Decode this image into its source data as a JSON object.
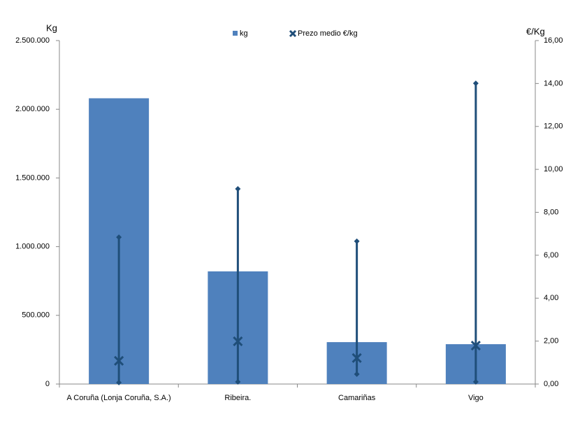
{
  "chart_data": {
    "type": "bar-range",
    "categories": [
      "A Coruña (Lonja Coruña, S.A.)",
      "Ribeira.",
      "Camariñas",
      "Vigo"
    ],
    "ylabel": "Kg",
    "y2label": "€/Kg",
    "series": [
      {
        "name": "kg",
        "color": "#4f81bd",
        "values": [
          2080000,
          820000,
          305000,
          290000
        ]
      },
      {
        "name": "Prezo medio €/kg",
        "color": "#1f4e79",
        "axis": "y2",
        "values": [
          1.08,
          1.99,
          1.21,
          1.79
        ],
        "high": [
          6.84,
          9.09,
          6.65,
          14.01
        ],
        "low": [
          0.07,
          0.1,
          0.46,
          0.1
        ]
      }
    ],
    "ylim": [
      0,
      2500000
    ],
    "yticks": [
      0,
      {
        "value": 500000,
        "label": "500.000"
      },
      {
        "value": 1000000,
        "label": "1.000.000"
      },
      {
        "value": 1500000,
        "label": "1.500.000"
      },
      {
        "value": 2000000,
        "label": "2.000.000"
      },
      {
        "value": 2500000,
        "label": "2.500.000"
      }
    ],
    "y2lim": [
      0,
      16
    ],
    "y2ticks": [
      {
        "value": 0,
        "label": "0,00"
      },
      {
        "value": 2,
        "label": "2,00"
      },
      {
        "value": 4,
        "label": "4,00"
      },
      {
        "value": 6,
        "label": "6,00"
      },
      {
        "value": 8,
        "label": "8,00"
      },
      {
        "value": 10,
        "label": "10,00"
      },
      {
        "value": 12,
        "label": "12,00"
      },
      {
        "value": 14,
        "label": "14,00"
      },
      {
        "value": 16,
        "label": "16,00"
      }
    ]
  }
}
